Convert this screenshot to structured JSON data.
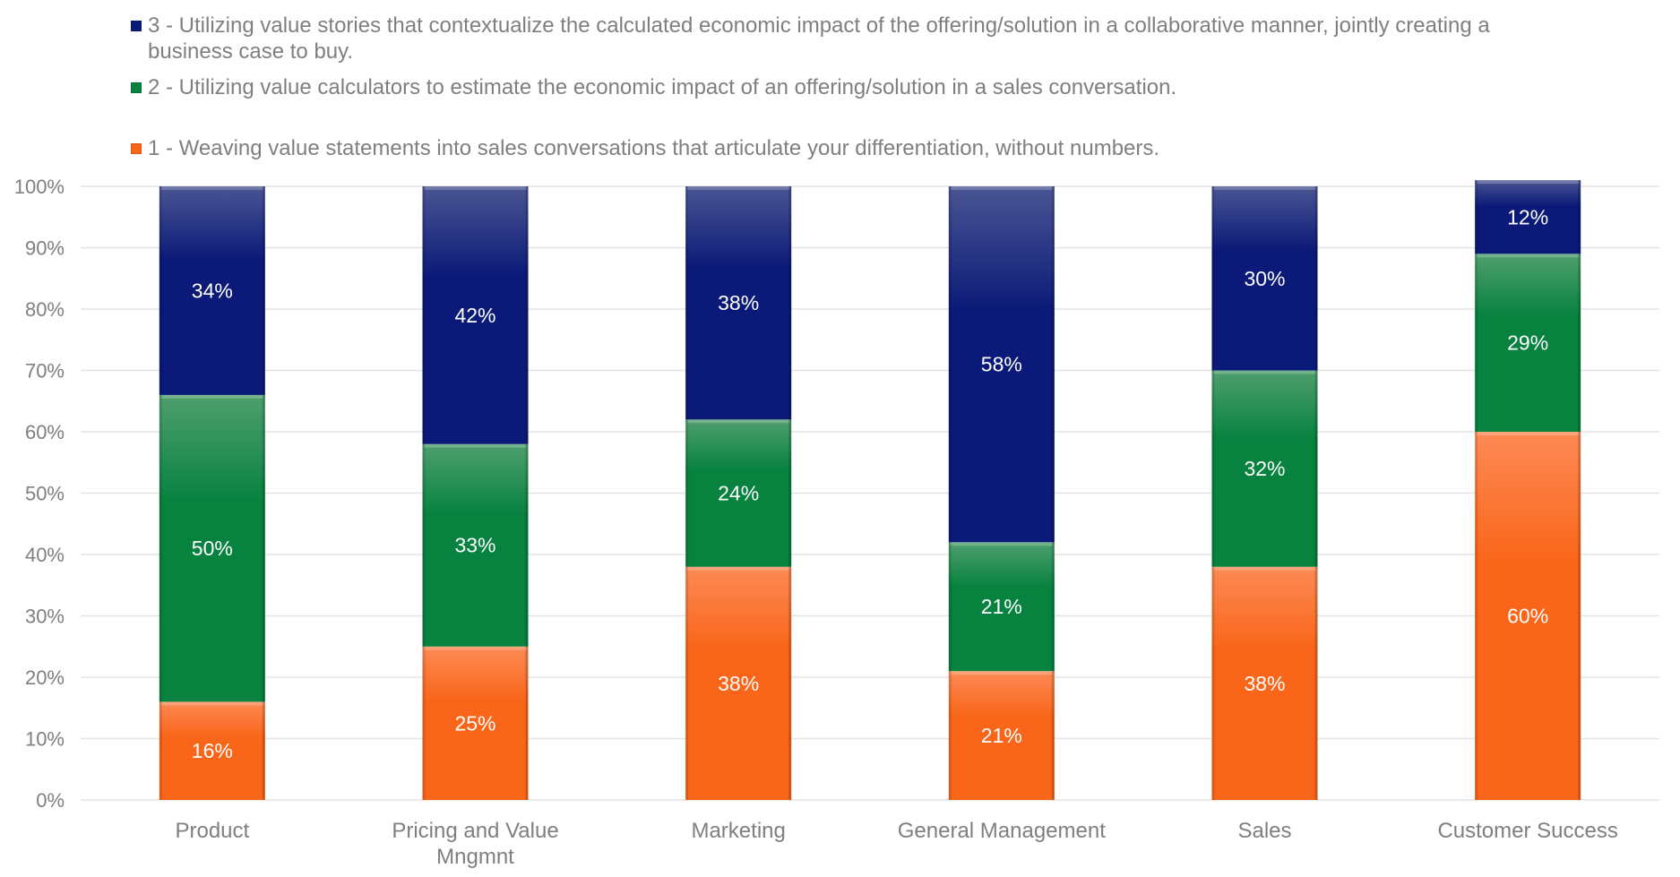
{
  "chart_data": {
    "type": "bar",
    "stacked": "percent",
    "title": "",
    "xlabel": "",
    "ylabel": "",
    "ylim": [
      0,
      100
    ],
    "yticks": [
      "0%",
      "10%",
      "20%",
      "30%",
      "40%",
      "50%",
      "60%",
      "70%",
      "80%",
      "90%",
      "100%"
    ],
    "grid": true,
    "legend_position": "top-left",
    "categories": [
      [
        "Product"
      ],
      [
        "Pricing and Value",
        "Mngmnt"
      ],
      [
        "Marketing"
      ],
      [
        "General Management"
      ],
      [
        "Sales"
      ],
      [
        "Customer Success"
      ]
    ],
    "category_names": [
      "Product",
      "Pricing and Value Mngmnt",
      "Marketing",
      "General Management",
      "Sales",
      "Customer Success"
    ],
    "series": [
      {
        "name": "1 - Weaving value statements into sales conversations that articulate your differentiation, without numbers.",
        "color": "#f9661a",
        "color_light": "#fd8a55",
        "values": [
          16,
          25,
          38,
          21,
          38,
          60
        ],
        "labels": [
          "16%",
          "25%",
          "38%",
          "21%",
          "38%",
          "60%"
        ]
      },
      {
        "name": "2 - Utilizing value calculators to estimate the economic impact of an offering/solution in a sales conversation.",
        "color": "#07823f",
        "color_light": "#4f9f6e",
        "values": [
          50,
          33,
          24,
          21,
          32,
          29
        ],
        "labels": [
          "50%",
          "33%",
          "24%",
          "21%",
          "32%",
          "29%"
        ]
      },
      {
        "name": "3 - Utilizing value stories that contextualize the calculated economic impact of the offering/solution in a collaborative manner, jointly creating a business case to buy.",
        "color": "#0b1a78",
        "color_light": "#4a5593",
        "values": [
          34,
          42,
          38,
          58,
          30,
          12
        ],
        "labels": [
          "34%",
          "42%",
          "38%",
          "58%",
          "30%",
          "12%"
        ]
      }
    ]
  },
  "legend": {
    "items": [
      {
        "name": "3 - Utilizing value stories that contextualize the calculated economic impact of the offering/solution in a collaborative manner, jointly creating a business case to buy.",
        "color": "#0b1a78",
        "line1": "3 - Utilizing value stories that contextualize the calculated economic impact of the offering/solution in a collaborative manner, jointly creating a",
        "line2": "business case to buy."
      },
      {
        "name": "2 - Utilizing value calculators to estimate the economic impact of an offering/solution in a sales conversation.",
        "color": "#07823f",
        "line1": "2 - Utilizing value calculators to estimate the economic impact of an offering/solution in a sales conversation.",
        "line2": ""
      },
      {
        "name": "1 - Weaving value statements into sales conversations that articulate your differentiation, without numbers.",
        "color": "#f9661a",
        "line1": "1 - Weaving value statements into sales conversations that articulate your differentiation, without numbers.",
        "line2": ""
      }
    ]
  }
}
